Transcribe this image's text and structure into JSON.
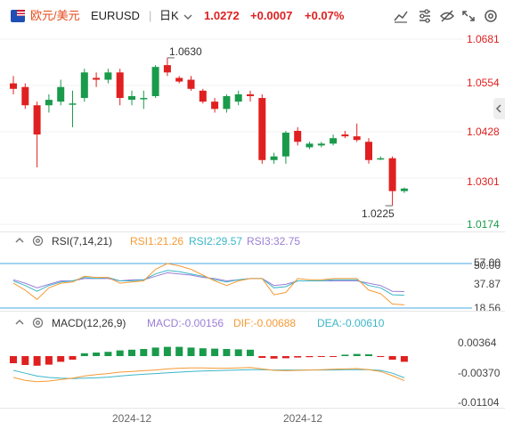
{
  "header": {
    "symbol_cn": "欧元/美元",
    "symbol": "EURUSD",
    "period": "日K",
    "price": "1.0272",
    "change": "+0.0007",
    "change_pct": "+0.07%",
    "icons": [
      "draw-icon",
      "indicator-icon",
      "hide-icon",
      "expand-icon",
      "settings-icon"
    ]
  },
  "colors": {
    "up": "#e02020",
    "down": "#1a9a4b",
    "rsi1": "#f59a35",
    "rsi2": "#3bb6c8",
    "rsi3": "#9b7ed6",
    "price_text": "#e02020"
  },
  "price_axis": {
    "ticks": [
      "1.0681",
      "1.0554",
      "1.0428",
      "1.0301",
      "1.0174"
    ],
    "high_label": "1.0630",
    "low_label": "1.0225"
  },
  "rsi": {
    "title": "RSI(7,14,21)",
    "rsi1": "RSI1:21.26",
    "rsi2": "RSI2:29.57",
    "rsi3": "RSI3:32.75",
    "ticks": [
      "57.00",
      "50.00",
      "37.87",
      "18.56"
    ]
  },
  "macd": {
    "title": "MACD(12,26,9)",
    "macd": "MACD:-0.00156",
    "dif": "DIF:-0.00688",
    "dea": "DEA:-0.00610",
    "ticks": [
      "0.00364",
      "-0.00370",
      "-0.01104"
    ]
  },
  "x_axis": [
    "2024-12",
    "2024-12"
  ],
  "chart_data": {
    "type": "candlestick",
    "price_ticks": [
      1.0681,
      1.0554,
      1.0428,
      1.0301,
      1.0174
    ],
    "candles": [
      {
        "o": 1.056,
        "h": 1.058,
        "l": 1.053,
        "c": 1.0545
      },
      {
        "o": 1.055,
        "h": 1.056,
        "l": 1.049,
        "c": 1.05
      },
      {
        "o": 1.05,
        "h": 1.051,
        "l": 1.033,
        "c": 1.042
      },
      {
        "o": 1.05,
        "h": 1.053,
        "l": 1.048,
        "c": 1.0515
      },
      {
        "o": 1.051,
        "h": 1.057,
        "l": 1.05,
        "c": 1.055
      },
      {
        "o": 1.0505,
        "h": 1.054,
        "l": 1.044,
        "c": 1.0505
      },
      {
        "o": 1.052,
        "h": 1.06,
        "l": 1.051,
        "c": 1.059
      },
      {
        "o": 1.0575,
        "h": 1.059,
        "l": 1.055,
        "c": 1.057
      },
      {
        "o": 1.057,
        "h": 1.06,
        "l": 1.056,
        "c": 1.059
      },
      {
        "o": 1.059,
        "h": 1.06,
        "l": 1.05,
        "c": 1.052
      },
      {
        "o": 1.0515,
        "h": 1.054,
        "l": 1.05,
        "c": 1.0525
      },
      {
        "o": 1.052,
        "h": 1.054,
        "l": 1.049,
        "c": 1.052
      },
      {
        "o": 1.0525,
        "h": 1.061,
        "l": 1.052,
        "c": 1.0605
      },
      {
        "o": 1.061,
        "h": 1.063,
        "l": 1.058,
        "c": 1.059
      },
      {
        "o": 1.0575,
        "h": 1.058,
        "l": 1.056,
        "c": 1.0565
      },
      {
        "o": 1.057,
        "h": 1.058,
        "l": 1.054,
        "c": 1.0545
      },
      {
        "o": 1.054,
        "h": 1.0545,
        "l": 1.0505,
        "c": 1.051
      },
      {
        "o": 1.051,
        "h": 1.052,
        "l": 1.048,
        "c": 1.049
      },
      {
        "o": 1.049,
        "h": 1.053,
        "l": 1.048,
        "c": 1.0525
      },
      {
        "o": 1.051,
        "h": 1.054,
        "l": 1.05,
        "c": 1.053
      },
      {
        "o": 1.053,
        "h": 1.054,
        "l": 1.051,
        "c": 1.0525
      },
      {
        "o": 1.052,
        "h": 1.053,
        "l": 1.034,
        "c": 1.035
      },
      {
        "o": 1.035,
        "h": 1.037,
        "l": 1.034,
        "c": 1.036
      },
      {
        "o": 1.036,
        "h": 1.043,
        "l": 1.034,
        "c": 1.0425
      },
      {
        "o": 1.043,
        "h": 1.044,
        "l": 1.039,
        "c": 1.04
      },
      {
        "o": 1.0385,
        "h": 1.04,
        "l": 1.038,
        "c": 1.0395
      },
      {
        "o": 1.039,
        "h": 1.04,
        "l": 1.0385,
        "c": 1.0395
      },
      {
        "o": 1.0395,
        "h": 1.042,
        "l": 1.039,
        "c": 1.041
      },
      {
        "o": 1.042,
        "h": 1.043,
        "l": 1.041,
        "c": 1.0415
      },
      {
        "o": 1.0415,
        "h": 1.045,
        "l": 1.04,
        "c": 1.0405
      },
      {
        "o": 1.04,
        "h": 1.041,
        "l": 1.034,
        "c": 1.035
      },
      {
        "o": 1.0355,
        "h": 1.036,
        "l": 1.035,
        "c": 1.0355
      },
      {
        "o": 1.0355,
        "h": 1.036,
        "l": 1.0225,
        "c": 1.0265
      },
      {
        "o": 1.0265,
        "h": 1.0275,
        "l": 1.026,
        "c": 1.0272
      }
    ],
    "macd_hist": [
      -0.002,
      -0.0025,
      -0.0027,
      -0.0024,
      -0.0016,
      -0.001,
      0.0008,
      0.001,
      0.0012,
      0.0016,
      0.0018,
      0.002,
      0.0024,
      0.0026,
      0.0026,
      0.0024,
      0.0022,
      0.0021,
      0.002,
      0.0019,
      0.0018,
      -0.0005,
      -0.0007,
      -0.0006,
      -0.0004,
      -0.0003,
      -0.0002,
      -0.0001,
      0.0004,
      0.0006,
      0.0005,
      -0.0002,
      -0.001,
      -0.0016
    ]
  }
}
